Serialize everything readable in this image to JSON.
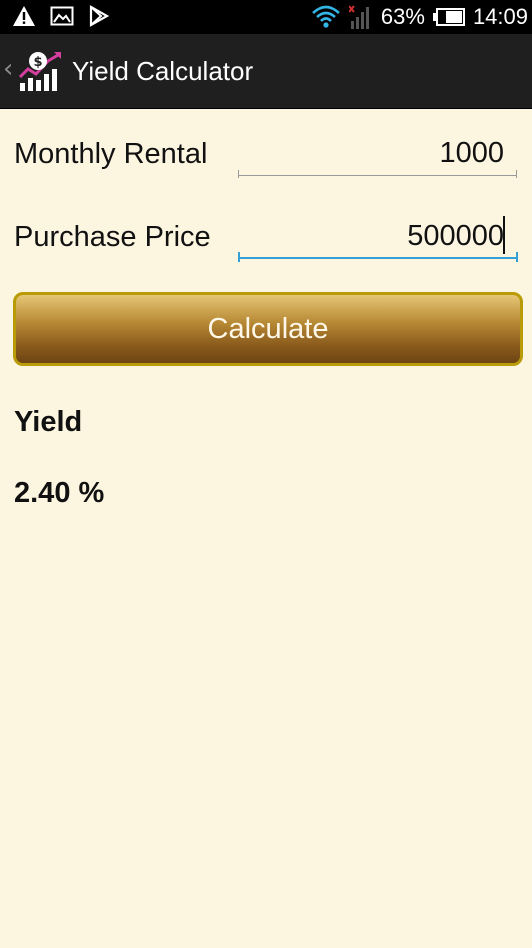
{
  "status_bar": {
    "icons": [
      "warning-icon",
      "image-icon",
      "play-store-icon",
      "wifi-icon",
      "signal-icon",
      "battery-icon"
    ],
    "battery_percent": "63%",
    "time": "14:09"
  },
  "action_bar": {
    "up_icon": "chevron-left-icon",
    "app_icon": "yield-chart-icon",
    "title": "Yield Calculator"
  },
  "form": {
    "monthly_rental": {
      "label": "Monthly Rental",
      "value": "1000"
    },
    "purchase_price": {
      "label": "Purchase Price",
      "value": "500000"
    },
    "calculate_label": "Calculate"
  },
  "result": {
    "heading": "Yield",
    "value": "2.40 %"
  },
  "colors": {
    "background": "#fcf5e0",
    "action_bar": "#1f1f1f",
    "focus_underline": "#33a0d6",
    "button_border": "#b89b07",
    "button_top": "#e5c675",
    "button_bottom": "#6d4412"
  }
}
